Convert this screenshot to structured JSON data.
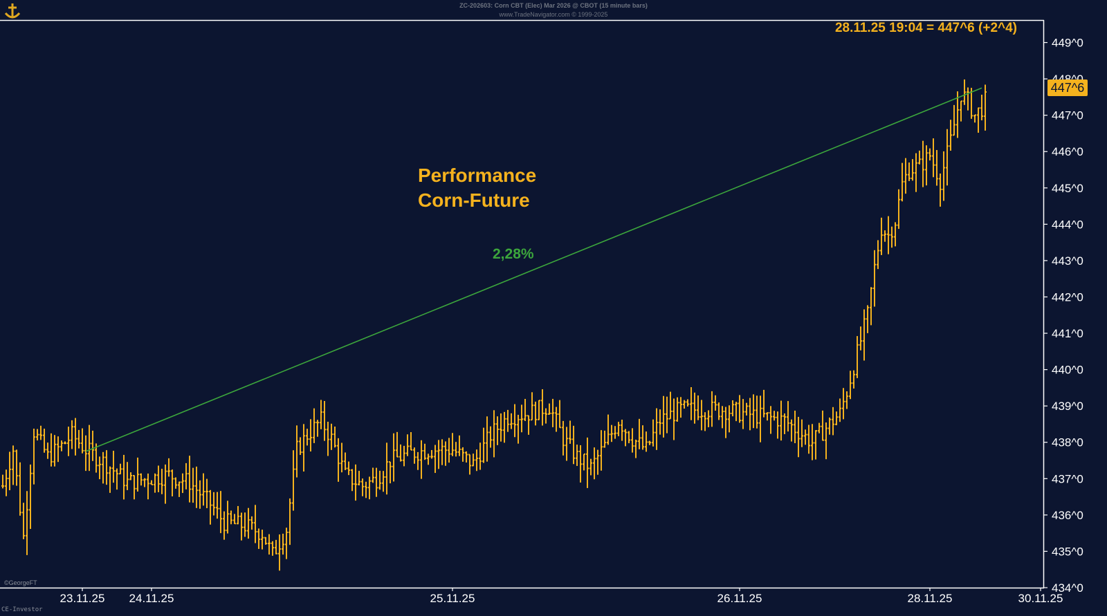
{
  "header": {
    "line1": "ZC-202603: Corn CBT (Elec) Mar 2026 @ CBOT (15 minute bars)",
    "line2": "www.TradeNavigator.com © 1999-2025"
  },
  "readout": "28.11.25 19:04 = 447^6 (+2^4)",
  "annotation": {
    "title_line1": "Performance",
    "title_line2": "Corn-Future",
    "performance_label": "2,28%"
  },
  "credit": "©GeorgeFT",
  "source": "CE-Investor",
  "last_price_badge": "447^6",
  "colors": {
    "background": "#0c1530",
    "bars": "#f5b21e",
    "trendline": "#3ca63c",
    "axis": "#ffffff"
  },
  "chart_data": {
    "type": "ohlc-bar",
    "interval": "15 minute bars",
    "ylim": [
      434,
      449.6
    ],
    "y_ticks": [
      434,
      435,
      436,
      437,
      438,
      439,
      440,
      441,
      442,
      443,
      444,
      445,
      446,
      447,
      448,
      449
    ],
    "y_tick_labels": [
      "434^0",
      "435^0",
      "436^0",
      "437^0",
      "438^0",
      "439^0",
      "440^0",
      "441^0",
      "442^0",
      "443^0",
      "444^0",
      "445^0",
      "446^0",
      "447^0",
      "448^0",
      "449^0"
    ],
    "x_labels": [
      "23.11.25",
      "24.11.25",
      "25.11.25",
      "26.11.25",
      "28.11.25",
      "30.11.25"
    ],
    "x_label_index": [
      23,
      43,
      130,
      213,
      268,
      300
    ],
    "bar_count": 285,
    "trendline": {
      "from": {
        "index": 24,
        "value": 437.75
      },
      "to": {
        "index": 283,
        "value": 447.75
      },
      "label": "2,28%"
    },
    "last_price": 447.75,
    "close_anchors": [
      [
        0,
        436.8
      ],
      [
        3,
        437.8
      ],
      [
        6,
        435.4
      ],
      [
        9,
        438.3
      ],
      [
        13,
        437.6
      ],
      [
        17,
        437.9
      ],
      [
        20,
        438.2
      ],
      [
        24,
        437.8
      ],
      [
        30,
        437.4
      ],
      [
        36,
        436.9
      ],
      [
        42,
        437.0
      ],
      [
        48,
        437.1
      ],
      [
        54,
        436.9
      ],
      [
        60,
        436.3
      ],
      [
        64,
        435.8
      ],
      [
        70,
        435.7
      ],
      [
        75,
        435.5
      ],
      [
        78,
        434.9
      ],
      [
        82,
        435.6
      ],
      [
        85,
        437.8
      ],
      [
        88,
        438.2
      ],
      [
        92,
        438.6
      ],
      [
        95,
        438.1
      ],
      [
        99,
        437.1
      ],
      [
        104,
        436.8
      ],
      [
        108,
        437.0
      ],
      [
        112,
        437.5
      ],
      [
        118,
        437.7
      ],
      [
        124,
        437.8
      ],
      [
        130,
        437.8
      ],
      [
        136,
        437.4
      ],
      [
        141,
        438.2
      ],
      [
        146,
        438.7
      ],
      [
        152,
        438.8
      ],
      [
        158,
        439.0
      ],
      [
        162,
        438.1
      ],
      [
        166,
        437.6
      ],
      [
        170,
        437.3
      ],
      [
        174,
        437.9
      ],
      [
        178,
        438.6
      ],
      [
        182,
        438.1
      ],
      [
        186,
        437.8
      ],
      [
        190,
        438.6
      ],
      [
        196,
        438.9
      ],
      [
        202,
        438.9
      ],
      [
        208,
        438.9
      ],
      [
        214,
        438.8
      ],
      [
        220,
        438.7
      ],
      [
        226,
        438.6
      ],
      [
        230,
        438.3
      ],
      [
        234,
        438.0
      ],
      [
        238,
        438.4
      ],
      [
        242,
        438.8
      ],
      [
        244,
        439.4
      ],
      [
        246,
        440.1
      ],
      [
        248,
        440.8
      ],
      [
        250,
        441.5
      ],
      [
        252,
        442.8
      ],
      [
        254,
        443.9
      ],
      [
        256,
        443.7
      ],
      [
        258,
        444.1
      ],
      [
        260,
        445.1
      ],
      [
        262,
        445.5
      ],
      [
        265,
        445.6
      ],
      [
        268,
        445.9
      ],
      [
        271,
        445.2
      ],
      [
        274,
        446.3
      ],
      [
        277,
        447.6
      ],
      [
        279,
        447.4
      ],
      [
        281,
        447.0
      ],
      [
        283,
        447.2
      ],
      [
        285,
        447.6
      ]
    ]
  }
}
